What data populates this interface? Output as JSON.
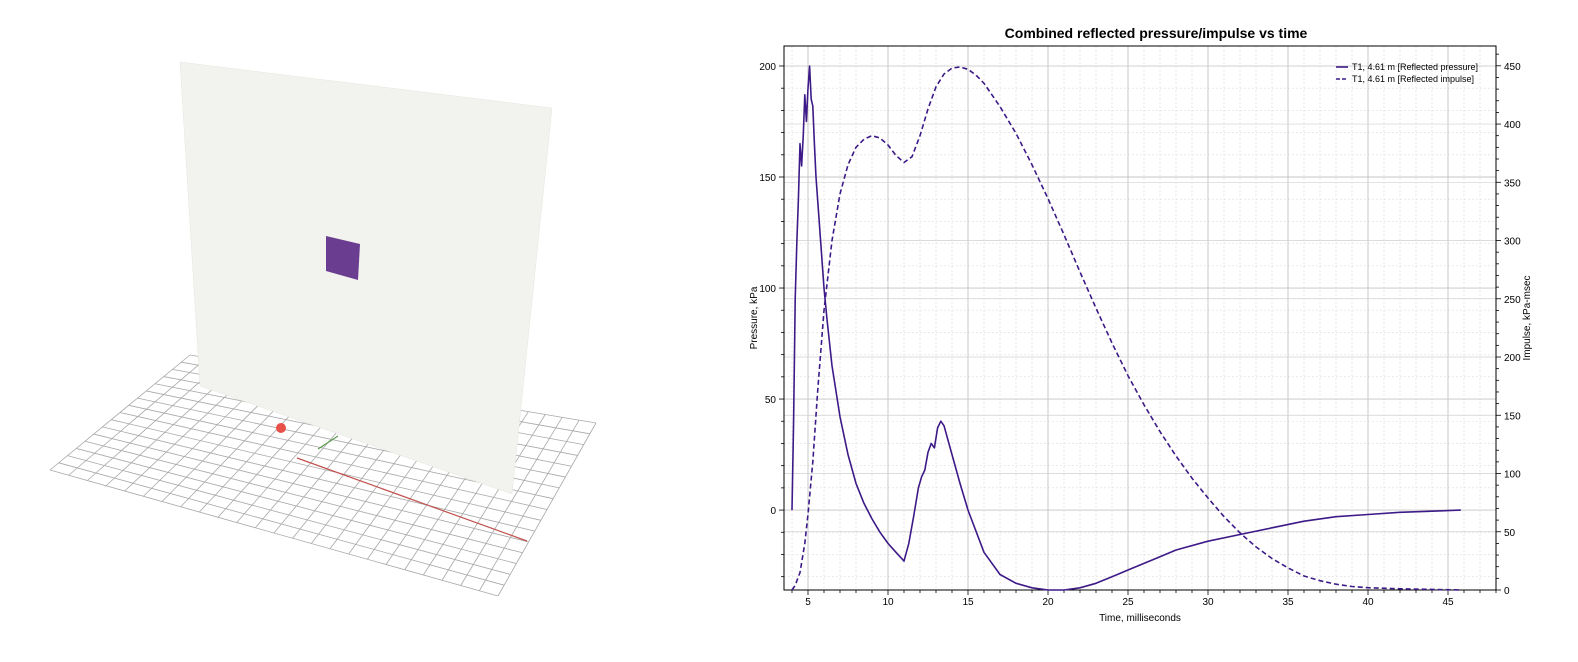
{
  "chart_data": {
    "type": "line",
    "title": "Combined reflected pressure/impulse vs time",
    "xlabel": "Time, milliseconds",
    "ylabel": "Pressure, kPa",
    "y2label": "Impulse, kPa-msec",
    "xlim": [
      3.5,
      48
    ],
    "ylim": [
      -36,
      209
    ],
    "y2lim": [
      0,
      467
    ],
    "xticks": [
      5,
      10,
      15,
      20,
      25,
      30,
      35,
      40,
      45
    ],
    "yticks": [
      0,
      50,
      100,
      150,
      200
    ],
    "y2ticks": [
      0,
      50,
      100,
      150,
      200,
      250,
      300,
      350,
      400,
      450
    ],
    "grid": true,
    "legend_position": "top-right",
    "line_color": "#3d1a87",
    "series": [
      {
        "name": "T1, 4.61 m [Reflected pressure]",
        "axis": "left",
        "style": "solid",
        "x": [
          4.0,
          4.1,
          4.2,
          4.3,
          4.4,
          4.5,
          4.6,
          4.7,
          4.8,
          4.9,
          5.0,
          5.1,
          5.2,
          5.3,
          5.4,
          5.5,
          5.6,
          5.8,
          6.0,
          6.2,
          6.5,
          7.0,
          7.5,
          8.0,
          8.5,
          9.0,
          9.5,
          10.0,
          10.5,
          11.0,
          11.3,
          11.6,
          11.9,
          12.1,
          12.3,
          12.5,
          12.7,
          12.9,
          13.1,
          13.3,
          13.5,
          14.0,
          14.5,
          15.0,
          16.0,
          17.0,
          18.0,
          19.0,
          20.0,
          21.0,
          22.0,
          23.0,
          24.0,
          25.0,
          26.0,
          27.0,
          28.0,
          30.0,
          32.0,
          34.0,
          36.0,
          38.0,
          40.0,
          42.0,
          44.0,
          45.8
        ],
        "values": [
          0,
          40,
          95,
          120,
          140,
          165,
          155,
          168,
          187,
          175,
          190,
          200,
          185,
          182,
          165,
          150,
          140,
          120,
          100,
          85,
          65,
          42,
          25,
          12,
          3,
          -4,
          -10,
          -15,
          -19,
          -23,
          -15,
          -3,
          10,
          15,
          18,
          26,
          30,
          28,
          37,
          40,
          38,
          25,
          12,
          0,
          -19,
          -29,
          -33,
          -35,
          -36,
          -36,
          -35,
          -33,
          -30,
          -27,
          -24,
          -21,
          -18,
          -14,
          -11,
          -8,
          -5,
          -3,
          -2,
          -1,
          -0.5,
          0
        ]
      },
      {
        "name": "T1, 4.61 m [Reflected impulse]",
        "axis": "right",
        "style": "dashed",
        "x": [
          4.0,
          4.2,
          4.5,
          4.8,
          5.0,
          5.3,
          5.6,
          6.0,
          6.5,
          7.0,
          7.5,
          8.0,
          8.5,
          9.0,
          9.5,
          10.0,
          10.5,
          11.0,
          11.5,
          12.0,
          12.5,
          13.0,
          13.5,
          14.0,
          14.5,
          15.0,
          15.5,
          16.0,
          17.0,
          18.0,
          19.0,
          20.0,
          21.0,
          22.0,
          23.0,
          24.0,
          25.0,
          26.0,
          27.0,
          28.0,
          29.0,
          30.0,
          31.0,
          32.0,
          33.0,
          34.0,
          35.0,
          36.0,
          37.0,
          38.0,
          39.0,
          40.0,
          42.0,
          44.0,
          45.8
        ],
        "values": [
          0,
          4,
          15,
          40,
          65,
          110,
          170,
          240,
          300,
          340,
          365,
          380,
          387,
          390,
          388,
          382,
          373,
          367,
          372,
          390,
          413,
          432,
          443,
          448,
          449,
          447,
          442,
          435,
          415,
          392,
          365,
          336,
          305,
          273,
          242,
          212,
          184,
          159,
          136,
          115,
          96,
          79,
          63,
          49,
          37,
          27,
          19,
          12,
          8,
          5,
          3,
          2,
          1,
          0.5,
          0
        ]
      }
    ]
  },
  "scene": {
    "panel_color": "#f2f2ee",
    "target_color": "#6a3d91",
    "charge_color": "#e8504a",
    "grid_color": "#a8a8a8",
    "axis_x_color": "#c0504d",
    "axis_y_color": "#5a9a4a"
  }
}
